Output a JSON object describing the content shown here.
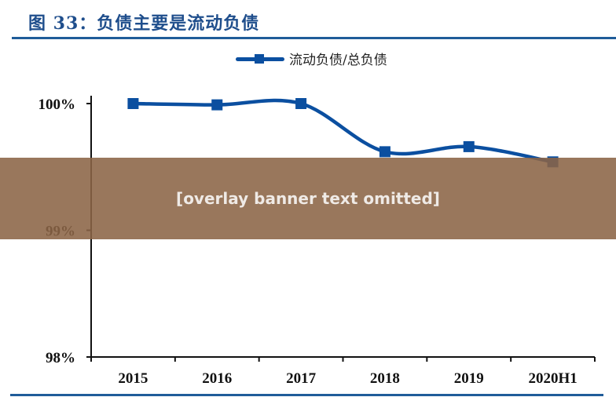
{
  "header": {
    "title": "图 33：负债主要是流动负债"
  },
  "legend": {
    "label": "流动负债/总负债",
    "color": "#0b4fa0"
  },
  "overlay": {
    "note": "[overlay banner text omitted]",
    "background": "#8b6446"
  },
  "colors": {
    "series": "#0b4fa0",
    "accent_rule": "#1f5c99",
    "title": "#1f4e8c"
  },
  "chart_data": {
    "type": "line",
    "title": "图 33：负债主要是流动负债",
    "xlabel": "",
    "ylabel": "",
    "categories": [
      "2015",
      "2016",
      "2017",
      "2018",
      "2019",
      "2020H1"
    ],
    "series": [
      {
        "name": "流动负债/总负债",
        "values": [
          100.0,
          99.99,
          100.0,
          99.62,
          99.66,
          99.54
        ],
        "marker": "square",
        "smooth": true
      }
    ],
    "yticks": [
      "98%",
      "99%",
      "100%"
    ],
    "ylim": [
      98,
      100
    ],
    "grid": false,
    "legend_position": "top"
  }
}
